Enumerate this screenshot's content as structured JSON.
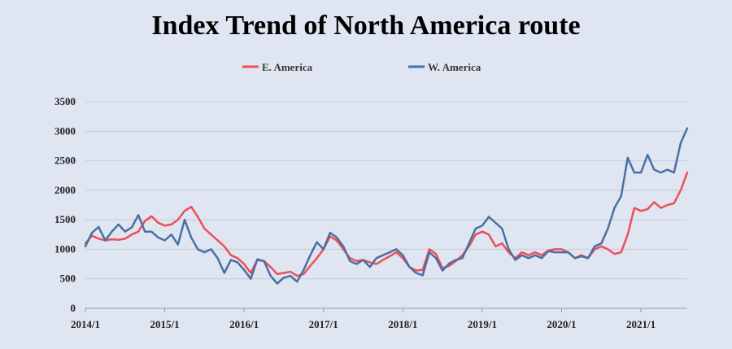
{
  "chart_data": {
    "type": "line",
    "title": "Index Trend of North America route",
    "xlabel": "",
    "ylabel": "",
    "ylim": [
      0,
      3500
    ],
    "yticks": [
      0,
      500,
      1000,
      1500,
      2000,
      2500,
      3000,
      3500
    ],
    "xlim": [
      "2014-01",
      "2021-08"
    ],
    "xticks": [
      "2014/1",
      "2015/1",
      "2016/1",
      "2017/1",
      "2018/1",
      "2019/1",
      "2020/1",
      "2021/1"
    ],
    "grid": true,
    "legend_position": "top",
    "x": [
      "2014-01",
      "2014-02",
      "2014-03",
      "2014-04",
      "2014-05",
      "2014-06",
      "2014-07",
      "2014-08",
      "2014-09",
      "2014-10",
      "2014-11",
      "2014-12",
      "2015-01",
      "2015-02",
      "2015-03",
      "2015-04",
      "2015-05",
      "2015-06",
      "2015-07",
      "2015-08",
      "2015-09",
      "2015-10",
      "2015-11",
      "2015-12",
      "2016-01",
      "2016-02",
      "2016-03",
      "2016-04",
      "2016-05",
      "2016-06",
      "2016-07",
      "2016-08",
      "2016-09",
      "2016-10",
      "2016-11",
      "2016-12",
      "2017-01",
      "2017-02",
      "2017-03",
      "2017-04",
      "2017-05",
      "2017-06",
      "2017-07",
      "2017-08",
      "2017-09",
      "2017-10",
      "2017-11",
      "2017-12",
      "2018-01",
      "2018-02",
      "2018-03",
      "2018-04",
      "2018-05",
      "2018-06",
      "2018-07",
      "2018-08",
      "2018-09",
      "2018-10",
      "2018-11",
      "2018-12",
      "2019-01",
      "2019-02",
      "2019-03",
      "2019-04",
      "2019-05",
      "2019-06",
      "2019-07",
      "2019-08",
      "2019-09",
      "2019-10",
      "2019-11",
      "2019-12",
      "2020-01",
      "2020-02",
      "2020-03",
      "2020-04",
      "2020-05",
      "2020-06",
      "2020-07",
      "2020-08",
      "2020-09",
      "2020-10",
      "2020-11",
      "2020-12",
      "2021-01",
      "2021-02",
      "2021-03",
      "2021-04",
      "2021-05",
      "2021-06",
      "2021-07",
      "2021-08"
    ],
    "series": [
      {
        "name": "E. America",
        "color": "#f04e57",
        "values": [
          1100,
          1230,
          1180,
          1150,
          1170,
          1160,
          1180,
          1250,
          1300,
          1480,
          1560,
          1450,
          1400,
          1420,
          1500,
          1650,
          1720,
          1550,
          1350,
          1250,
          1150,
          1050,
          900,
          850,
          750,
          600,
          820,
          800,
          700,
          580,
          600,
          620,
          550,
          580,
          720,
          850,
          1000,
          1220,
          1150,
          1000,
          850,
          800,
          820,
          780,
          750,
          820,
          880,
          950,
          850,
          700,
          640,
          650,
          1000,
          920,
          680,
          720,
          800,
          900,
          1050,
          1250,
          1300,
          1250,
          1050,
          1100,
          950,
          850,
          950,
          900,
          950,
          900,
          980,
          1000,
          1000,
          950,
          850,
          900,
          850,
          1000,
          1050,
          1000,
          920,
          950,
          1250,
          1700,
          1650,
          1680,
          1800,
          1700,
          1750,
          1780,
          2000,
          2300
        ]
      },
      {
        "name": "W. America",
        "color": "#4a6fa5",
        "values": [
          1050,
          1280,
          1380,
          1150,
          1300,
          1420,
          1300,
          1370,
          1580,
          1300,
          1300,
          1200,
          1150,
          1250,
          1080,
          1500,
          1200,
          1000,
          950,
          1000,
          850,
          600,
          820,
          780,
          650,
          500,
          830,
          800,
          550,
          420,
          520,
          550,
          450,
          650,
          900,
          1120,
          1000,
          1280,
          1200,
          1050,
          800,
          750,
          820,
          700,
          850,
          900,
          950,
          1000,
          900,
          700,
          600,
          560,
          950,
          850,
          640,
          760,
          820,
          850,
          1100,
          1350,
          1400,
          1550,
          1450,
          1350,
          1000,
          820,
          900,
          850,
          900,
          850,
          970,
          950,
          950,
          950,
          850,
          880,
          850,
          1050,
          1100,
          1350,
          1700,
          1900,
          2550,
          2300,
          2300,
          2600,
          2350,
          2300,
          2350,
          2300,
          2800,
          3050
        ]
      }
    ]
  }
}
